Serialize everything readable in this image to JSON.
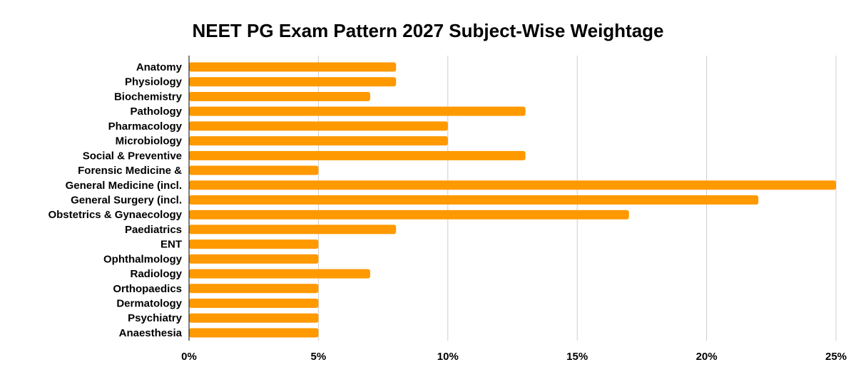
{
  "chart_data": {
    "type": "bar",
    "orientation": "horizontal",
    "title": "NEET PG Exam Pattern 2027 Subject-Wise Weightage",
    "categories": [
      "Anatomy",
      "Physiology",
      "Biochemistry",
      "Pathology",
      "Pharmacology",
      "Microbiology",
      "Social & Preventive",
      "Forensic Medicine &",
      "General Medicine (incl.",
      "General Surgery (incl.",
      "Obstetrics & Gynaecology",
      "Paediatrics",
      "ENT",
      "Ophthalmology",
      "Radiology",
      "Orthopaedics",
      "Dermatology",
      "Psychiatry",
      "Anaesthesia"
    ],
    "values": [
      8,
      8,
      7,
      13,
      10,
      10,
      13,
      5,
      25,
      22,
      17,
      8,
      5,
      5,
      7,
      5,
      5,
      5,
      5
    ],
    "xlim": [
      0,
      25
    ],
    "xticks": [
      "0%",
      "5%",
      "10%",
      "15%",
      "20%",
      "25%"
    ],
    "grid": true,
    "legend": "none",
    "colors": {
      "bar": "#ff9900",
      "grid": "#cccccc",
      "axis": "#000000"
    }
  }
}
